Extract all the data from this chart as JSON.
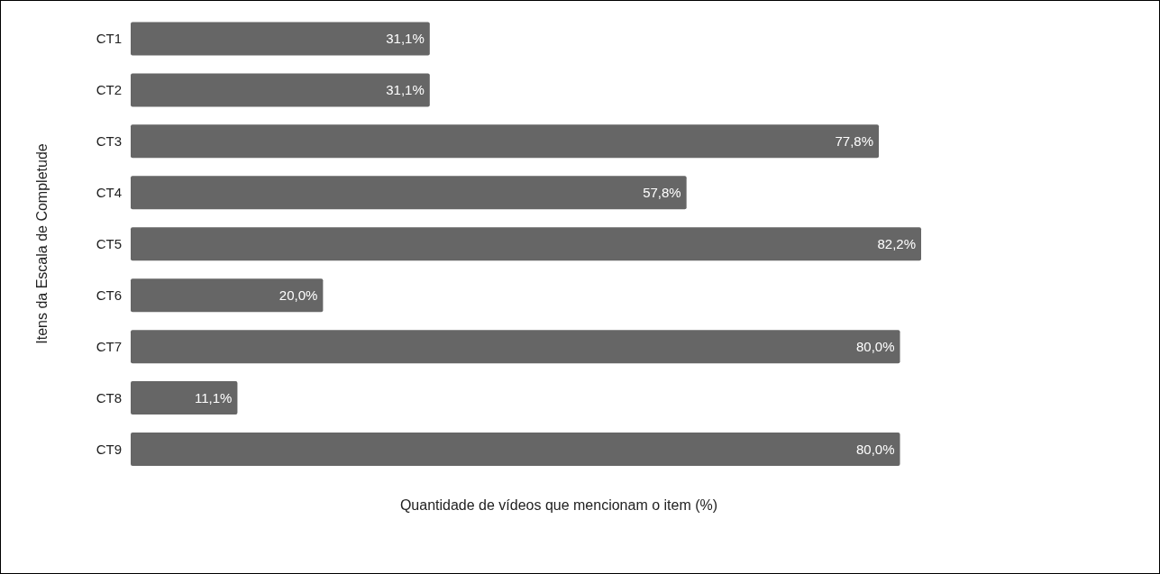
{
  "chart_data": {
    "type": "bar",
    "orientation": "horizontal",
    "xlabel": "Quantidade de vídeos que mencionam o item (%)",
    "ylabel": "Itens da Escala de Completude",
    "categories": [
      "CT1",
      "CT2",
      "CT3",
      "CT4",
      "CT5",
      "CT6",
      "CT7",
      "CT8",
      "CT9"
    ],
    "values": [
      31.1,
      31.1,
      77.8,
      57.8,
      82.2,
      20.0,
      80.0,
      11.1,
      80.0
    ],
    "value_labels": [
      "31,1%",
      "31,1%",
      "77,8%",
      "57,8%",
      "82,2%",
      "20,0%",
      "80,0%",
      "11,1%",
      "80,0%"
    ],
    "color": "#666666",
    "tick_labels": "y"
  }
}
